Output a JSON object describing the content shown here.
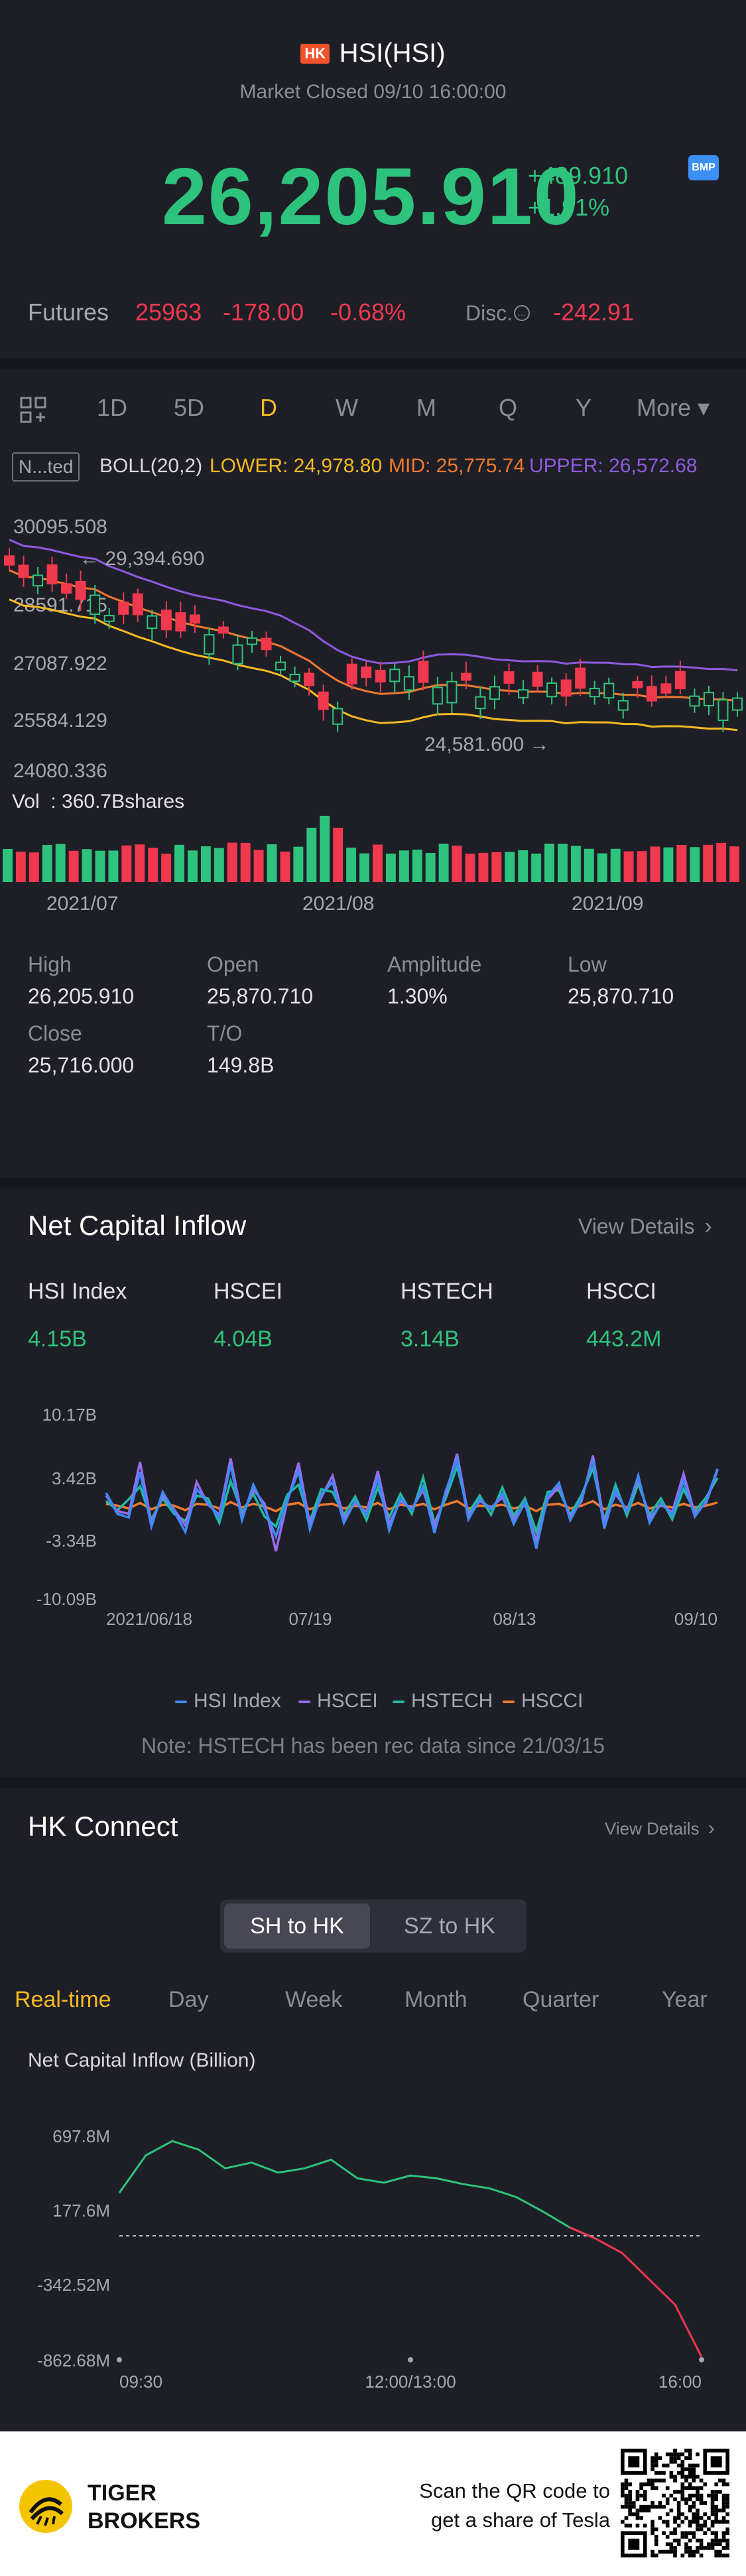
{
  "header": {
    "region_badge": "HK",
    "title": "HSI(HSI)",
    "status": "Market Closed 09/10 16:00:00",
    "price": "26,205.910",
    "change": "+489.910",
    "change_pct": "+1.91%",
    "bmp_badge": "BMP"
  },
  "futures": {
    "label": "Futures",
    "price": "25963",
    "change": "-178.00",
    "change_pct": "-0.68%",
    "disc_label": "Disc.",
    "disc_value": "-242.91"
  },
  "period_tabs": [
    "1D",
    "5D",
    "D",
    "W",
    "M",
    "Q",
    "Y"
  ],
  "period_active": "D",
  "more_label": "More ▾",
  "indicator": {
    "box_label": "N...ted",
    "name": "BOLL(20,2)",
    "lower": "LOWER: 24,978.80",
    "mid": "MID: 25,775.74",
    "upper": "UPPER: 26,572.68"
  },
  "kline": {
    "y_labels": [
      "30095.508",
      "28591.715",
      "27087.922",
      "25584.129",
      "24080.336"
    ],
    "high_marker": "29,394.690",
    "low_marker": "24,581.600",
    "volume_label": "Vol  : 360.7Bshares",
    "x_labels": [
      "2021/07",
      "2021/08",
      "2021/09"
    ]
  },
  "stats": [
    {
      "label": "High",
      "value": "26,205.910"
    },
    {
      "label": "Open",
      "value": "25,870.710"
    },
    {
      "label": "Amplitude",
      "value": "1.30%"
    },
    {
      "label": "Low",
      "value": "25,870.710"
    },
    {
      "label": "Close",
      "value": "25,716.000"
    },
    {
      "label": "T/O",
      "value": "149.8B"
    }
  ],
  "net_inflow": {
    "title": "Net Capital Inflow",
    "view_details": "View Details",
    "indices": [
      {
        "name": "HSI Index",
        "value": "4.15B"
      },
      {
        "name": "HSCEI",
        "value": "4.04B"
      },
      {
        "name": "HSTECH",
        "value": "3.14B"
      },
      {
        "name": "HSCCI",
        "value": "443.2M"
      }
    ],
    "note": "Note: HSTECH has been rec data since 21/03/15"
  },
  "hk_connect": {
    "title": "HK Connect",
    "view_details": "View Details",
    "toggle": [
      "SH to HK",
      "SZ to HK"
    ],
    "toggle_active": "SH to HK",
    "tabs": [
      "Real-time",
      "Day",
      "Week",
      "Month",
      "Quarter",
      "Year"
    ],
    "tab_active": "Real-time",
    "chart_title": "Net Capital Inflow (Billion)"
  },
  "footer": {
    "brand_line1": "TIGER",
    "brand_line2": "BROKERS",
    "scan_line1": "Scan the QR code to",
    "scan_line2": "get a share of Tesla"
  },
  "colors": {
    "up": "#2dc37c",
    "down": "#f0384e",
    "accent": "#f5b921",
    "boll_upper": "#8e5ae0",
    "boll_mid": "#f0792f",
    "boll_lower": "#f5b921"
  },
  "chart_data": [
    {
      "type": "line",
      "title": "Net Capital Inflow",
      "x_tick_labels": [
        "2021/06/18",
        "07/19",
        "08/13",
        "09/10"
      ],
      "y_tick_labels": [
        "10.17B",
        "3.42B",
        "-3.34B",
        "-10.09B"
      ],
      "ylim": [
        -10.09,
        10.17
      ],
      "legend": [
        "HSI Index",
        "HSCEI",
        "HSTECH",
        "HSCCI"
      ],
      "legend_colors": [
        "#3d8af7",
        "#9a6cf0",
        "#22b8a5",
        "#f0792f"
      ],
      "series": [
        {
          "name": "HSI Index",
          "values": [
            1.5,
            -0.8,
            -1.2,
            3.8,
            -2.2,
            1.6,
            -0.5,
            -2.8,
            1.9,
            0.4,
            -1.2,
            4.6,
            -1.5,
            2.4,
            -0.2,
            -3.3,
            0.7,
            3.9,
            -2.5,
            1.3,
            2.7,
            -1.8,
            0.6,
            -0.9,
            3.1,
            -2.6,
            0.9,
            -0.4,
            2.2,
            -2.9,
            1.7,
            5.2,
            -1.4,
            0.8,
            -0.3,
            1.4,
            -1.9,
            0.5,
            -4.6,
            1.1,
            2.6,
            -1.5,
            0.9,
            5.1,
            -2.4,
            1.8,
            -0.6,
            3.4,
            -1.8,
            0.4,
            -0.9,
            2.8,
            -1.1,
            0.6,
            4.15
          ]
        },
        {
          "name": "HSCEI",
          "values": [
            1.2,
            -0.5,
            -0.8,
            4.9,
            -1.8,
            1.2,
            -0.3,
            -2.1,
            2.7,
            0.2,
            -0.9,
            5.3,
            -1.1,
            1.9,
            0.3,
            -4.9,
            0.5,
            4.8,
            -1.9,
            1.0,
            3.4,
            -1.3,
            0.4,
            -0.6,
            3.9,
            -1.9,
            0.6,
            -0.2,
            1.8,
            -2.1,
            1.3,
            5.8,
            -1.0,
            0.6,
            -0.1,
            1.0,
            -1.4,
            0.3,
            -3.8,
            0.8,
            2.2,
            -1.1,
            0.6,
            5.6,
            -1.8,
            1.4,
            -0.4,
            3.0,
            -1.3,
            0.2,
            -0.6,
            3.6,
            -0.8,
            0.4,
            4.04
          ]
        },
        {
          "name": "HSTECH",
          "values": [
            0.6,
            -0.4,
            0.8,
            2.2,
            -1.4,
            0.9,
            -0.8,
            -1.6,
            1.2,
            0.9,
            -1.8,
            2.8,
            -0.6,
            1.4,
            -1.1,
            -2.2,
            1.3,
            2.4,
            -1.6,
            1.9,
            1.6,
            -0.9,
            1.1,
            -1.5,
            2.1,
            -1.2,
            1.4,
            -0.8,
            3.2,
            -1.8,
            0.9,
            4.4,
            -0.7,
            1.2,
            -0.9,
            2.1,
            -1.0,
            0.9,
            -2.8,
            1.6,
            1.8,
            -0.9,
            1.3,
            4.2,
            -1.5,
            2.4,
            -1.0,
            2.5,
            -0.9,
            0.9,
            -1.4,
            1.9,
            -0.5,
            1.0,
            3.14
          ]
        },
        {
          "name": "HSCCI",
          "values": [
            0.3,
            0.1,
            -0.2,
            0.4,
            -0.3,
            0.2,
            0.1,
            -0.4,
            0.3,
            0.2,
            -0.2,
            0.5,
            -0.1,
            0.3,
            0.0,
            -0.5,
            0.2,
            0.4,
            -0.3,
            0.2,
            0.3,
            -0.2,
            0.1,
            -0.1,
            0.4,
            -0.3,
            0.2,
            0.0,
            0.3,
            -0.3,
            0.2,
            0.6,
            -0.2,
            0.1,
            0.0,
            0.2,
            -0.2,
            0.1,
            -0.5,
            0.2,
            0.3,
            -0.2,
            0.1,
            0.6,
            -0.3,
            0.2,
            -0.1,
            0.4,
            -0.2,
            0.1,
            -0.1,
            0.3,
            -0.1,
            0.1,
            0.44
          ]
        }
      ]
    },
    {
      "type": "line",
      "title": "Net Capital Inflow (Billion)",
      "x_tick_labels": [
        "09:30",
        "12:00/13:00",
        "16:00"
      ],
      "y_tick_labels": [
        "697.8M",
        "177.6M",
        "-342.52M",
        "-862.68M"
      ],
      "ylim": [
        -862.68,
        697.8
      ],
      "x": [
        "09:30",
        "09:45",
        "10:00",
        "10:15",
        "10:30",
        "10:45",
        "11:00",
        "11:15",
        "11:30",
        "11:45",
        "12:00",
        "13:15",
        "13:30",
        "13:45",
        "14:00",
        "14:15",
        "14:30",
        "14:45",
        "15:00",
        "15:15",
        "15:30",
        "15:45",
        "16:00"
      ],
      "series": [
        {
          "name": "Net Inflow (M)",
          "values": [
            300,
            560,
            660,
            600,
            470,
            510,
            440,
            470,
            530,
            400,
            370,
            420,
            400,
            360,
            330,
            270,
            170,
            60,
            -20,
            -120,
            -300,
            -480,
            -842.7
          ]
        }
      ]
    }
  ]
}
